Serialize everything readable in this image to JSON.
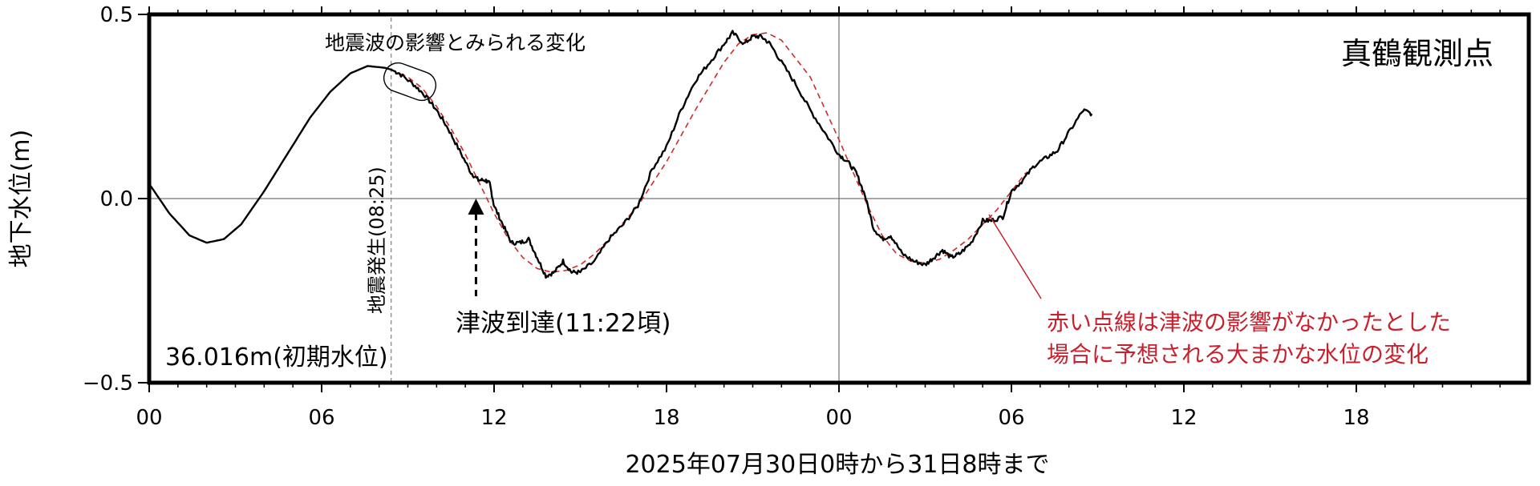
{
  "chart_data": {
    "type": "line",
    "ylabel": "地下水位(m)",
    "xlabel": "2025年07月30日0時から31日8時まで",
    "ylim": [
      -0.5,
      0.5
    ],
    "xlim_hours": [
      0,
      48
    ],
    "y_ticks": [
      {
        "value": 0.5,
        "label": "0.5"
      },
      {
        "value": 0.0,
        "label": "0.0"
      },
      {
        "value": -0.5,
        "label": "−0.5"
      }
    ],
    "x_ticks": [
      {
        "hour": 0,
        "label": "00"
      },
      {
        "hour": 6,
        "label": "06"
      },
      {
        "hour": 12,
        "label": "12"
      },
      {
        "hour": 18,
        "label": "18"
      },
      {
        "hour": 24,
        "label": "00"
      },
      {
        "hour": 30,
        "label": "06"
      },
      {
        "hour": 36,
        "label": "12"
      },
      {
        "hour": 42,
        "label": "18"
      }
    ],
    "grid": false,
    "reference_lines": {
      "y_zero": true,
      "x_hour": 24
    },
    "series": [
      {
        "style": "solid",
        "color": "#000000",
        "x": [
          0.0,
          0.7,
          1.4,
          2.0,
          2.6,
          3.2,
          4.0,
          4.8,
          5.6,
          6.3,
          7.0,
          7.6,
          8.2,
          8.42,
          8.7,
          9.2,
          9.6,
          10.0,
          10.4,
          10.8,
          11.2,
          11.45,
          11.7,
          11.85,
          12.0,
          12.3,
          12.6,
          12.9,
          13.2,
          13.5,
          13.8,
          14.1,
          14.4,
          14.7,
          15.0,
          15.5,
          16.0,
          16.5,
          17.0,
          17.5,
          18.0,
          18.5,
          19.0,
          19.5,
          20.0,
          20.3,
          20.7,
          21.0,
          21.3,
          21.6,
          22.0,
          22.5,
          23.0,
          23.5,
          24.0,
          24.3,
          24.6,
          24.9,
          25.2,
          25.5,
          25.8,
          26.2,
          26.6,
          27.0,
          27.3,
          27.6,
          27.9,
          28.2,
          28.6,
          29.0,
          29.3,
          29.7,
          30.0,
          30.4,
          30.8,
          31.2,
          31.6,
          32.0,
          32.5,
          32.8
        ],
        "y": [
          0.04,
          -0.04,
          -0.1,
          -0.12,
          -0.11,
          -0.07,
          0.02,
          0.12,
          0.22,
          0.29,
          0.34,
          0.36,
          0.355,
          0.35,
          0.34,
          0.31,
          0.28,
          0.24,
          0.19,
          0.13,
          0.07,
          0.05,
          0.05,
          0.04,
          -0.02,
          -0.07,
          -0.12,
          -0.12,
          -0.11,
          -0.16,
          -0.21,
          -0.2,
          -0.17,
          -0.2,
          -0.2,
          -0.17,
          -0.11,
          -0.07,
          -0.02,
          0.08,
          0.14,
          0.24,
          0.32,
          0.37,
          0.42,
          0.45,
          0.42,
          0.44,
          0.44,
          0.42,
          0.37,
          0.31,
          0.24,
          0.18,
          0.12,
          0.1,
          0.07,
          0.01,
          -0.08,
          -0.11,
          -0.1,
          -0.15,
          -0.17,
          -0.18,
          -0.16,
          -0.14,
          -0.16,
          -0.15,
          -0.12,
          -0.06,
          -0.06,
          -0.05,
          0.02,
          0.05,
          0.09,
          0.11,
          0.13,
          0.18,
          0.24,
          0.23
        ]
      },
      {
        "style": "dashed",
        "color": "#d02a2a",
        "x": [
          8.42,
          9.0,
          9.5,
          10.0,
          10.5,
          11.0,
          11.5,
          12.0,
          12.5,
          13.0,
          13.5,
          14.0,
          14.5,
          15.0,
          15.5,
          16.0,
          17.0,
          18.0,
          19.0,
          20.0,
          20.5,
          21.0,
          21.5,
          22.0,
          23.0,
          24.0,
          25.0,
          25.5,
          26.0,
          26.5,
          27.0,
          27.5,
          28.0,
          28.5,
          29.0,
          29.5,
          30.0,
          30.5
        ],
        "y": [
          0.35,
          0.33,
          0.3,
          0.25,
          0.19,
          0.12,
          0.04,
          -0.04,
          -0.11,
          -0.16,
          -0.19,
          -0.2,
          -0.195,
          -0.18,
          -0.15,
          -0.11,
          -0.02,
          0.1,
          0.24,
          0.37,
          0.42,
          0.445,
          0.45,
          0.43,
          0.33,
          0.16,
          -0.02,
          -0.1,
          -0.15,
          -0.17,
          -0.175,
          -0.165,
          -0.14,
          -0.11,
          -0.07,
          -0.03,
          0.02,
          0.07
        ]
      }
    ]
  },
  "annotations": {
    "station_name": "真鶴観測点",
    "quake_effect_label": "地震波の影響とみられる変化",
    "quake_time_label": "地震発生(08:25)",
    "quake_time_hour": 8.42,
    "tsunami_label": "津波到達(11:22頃)",
    "tsunami_time_hour": 11.37,
    "initial_level_label": "36.016m(初期水位)",
    "red_note_line1": "赤い点線は津波の影響がなかったとした",
    "red_note_line2": "場合に予想される大まかな水位の変化",
    "red_color": "#c8202c"
  }
}
